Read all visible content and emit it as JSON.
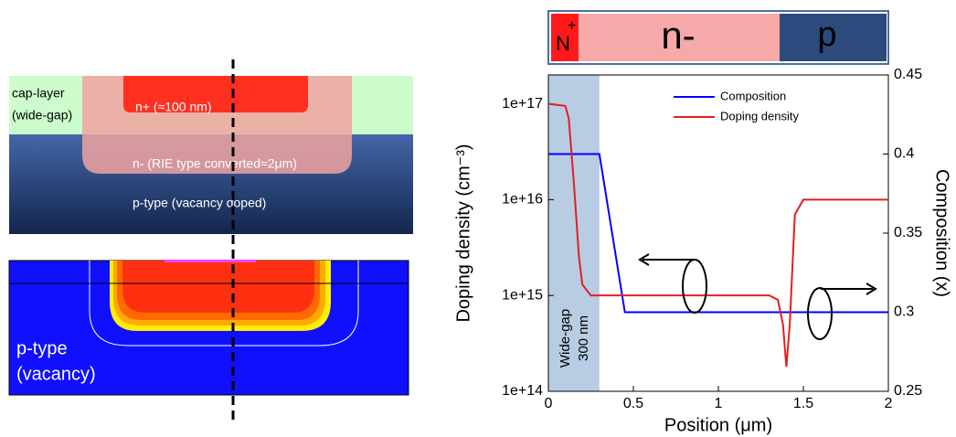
{
  "chart_data": {
    "type": "line",
    "xlabel": "Position (μm)",
    "ylabel": "Doping density (cm⁻³)",
    "y2label": "Composition (x)",
    "xlim": [
      0,
      2
    ],
    "xticks": [
      0,
      0.5,
      1,
      1.5,
      2
    ],
    "ylim": [
      100000000000000.0,
      2e+17
    ],
    "yscale": "log",
    "yticks": [
      {
        "value": 100000000000000.0,
        "label": "1e+14"
      },
      {
        "value": 1000000000000000.0,
        "label": "1e+15"
      },
      {
        "value": 1e+16,
        "label": "1e+16"
      },
      {
        "value": 1e+17,
        "label": "1e+17"
      }
    ],
    "y2lim": [
      0.25,
      0.45
    ],
    "y2ticks": [
      0.25,
      0.3,
      0.35,
      0.4,
      0.45
    ],
    "legend": "upper right",
    "shaded_region": {
      "x": [
        0,
        0.3
      ],
      "color": "#b8cce4",
      "label": [
        "Wide-gap",
        "300 nm"
      ]
    },
    "series": [
      {
        "name": "Composition",
        "color": "#0000ff",
        "axis": "y2",
        "x": [
          0,
          0.3,
          0.45,
          2
        ],
        "values": [
          0.4,
          0.4,
          0.3,
          0.3
        ]
      },
      {
        "name": "Doping density",
        "color": "#e02020",
        "x": [
          0,
          0.1,
          0.12,
          0.15,
          0.18,
          0.2,
          0.25,
          0.3,
          1.3,
          1.35,
          1.38,
          1.4,
          1.42,
          1.45,
          1.5,
          1.55,
          2
        ],
        "values": [
          1e+17,
          9.5e+16,
          7e+16,
          1.5e+16,
          2500000000000000.0,
          1300000000000000.0,
          1000000000000000.0,
          1000000000000000.0,
          1000000000000000.0,
          900000000000000.0,
          500000000000000.0,
          180000000000000.0,
          500000000000000.0,
          7000000000000000.0,
          1e+16,
          1e+16,
          1e+16
        ]
      }
    ]
  },
  "diagram": {
    "band": {
      "nplus": "N",
      "nplus_sup": "+",
      "nminus": "n-",
      "p": "p"
    },
    "cross_section": {
      "cap_layer": [
        "cap-layer",
        "(wide-gap)"
      ],
      "nplus": "n+ (≈100 nm)",
      "nminus": "n- (RIE type converted≈2μm)",
      "ptype": "p-type (vacancy doped)"
    },
    "simulation": {
      "ptype": [
        "p-type",
        "(vacancy)"
      ]
    }
  }
}
